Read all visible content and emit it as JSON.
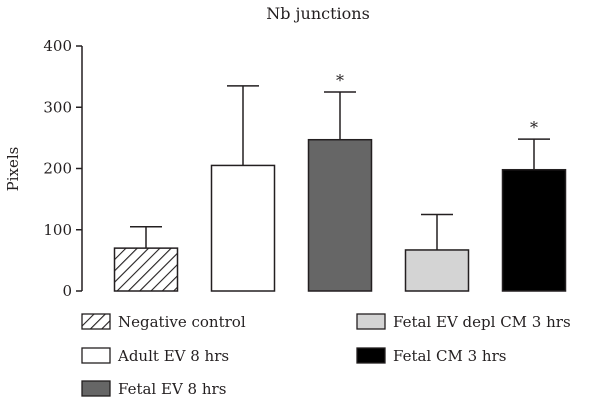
{
  "chart_data": {
    "type": "bar",
    "title": "Nb junctions",
    "xlabel": "",
    "ylabel": "Pixels",
    "ylim": [
      0,
      400
    ],
    "yticks": [
      0,
      100,
      200,
      300,
      400
    ],
    "grid": false,
    "legend_placement": "bottom",
    "categories": [
      "Negative control",
      "Adult EV 8 hrs",
      "Fetal EV 8 hrs",
      "Fetal EV depl CM 3 hrs",
      "Fetal CM 3 hrs"
    ],
    "values": [
      70,
      205,
      247,
      67,
      198
    ],
    "error_plus": [
      35,
      130,
      78,
      58,
      50
    ],
    "significance": [
      "",
      "",
      "*",
      "",
      "*"
    ],
    "styles": [
      {
        "fill": "hatch",
        "color": "#231f20"
      },
      {
        "fill": "#ffffff",
        "color": "#231f20"
      },
      {
        "fill": "#666666",
        "color": "#231f20"
      },
      {
        "fill": "#d4d4d4",
        "color": "#231f20"
      },
      {
        "fill": "#000000",
        "color": "#231f20"
      }
    ]
  }
}
